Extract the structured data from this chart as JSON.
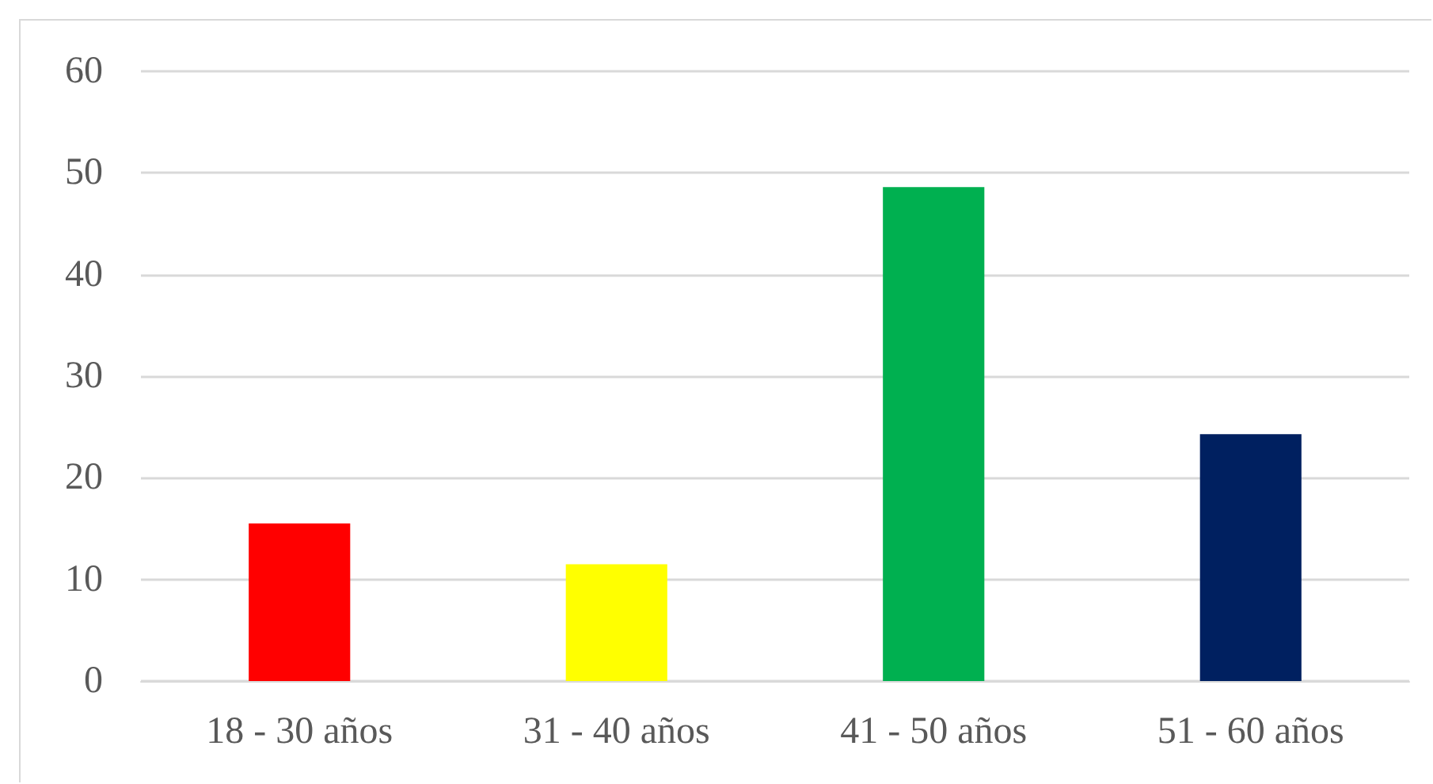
{
  "chart_data": {
    "type": "bar",
    "categories": [
      "18 - 30 años",
      "31 - 40 años",
      "41 - 50 años",
      "51 - 60 años"
    ],
    "values": [
      15.5,
      11.5,
      48.6,
      24.3
    ],
    "colors": [
      "#ff0000",
      "#ffff00",
      "#00b050",
      "#002060"
    ],
    "ylim": [
      0,
      60
    ],
    "yticks": [
      0,
      10,
      20,
      30,
      40,
      50,
      60
    ],
    "grid": "y"
  }
}
